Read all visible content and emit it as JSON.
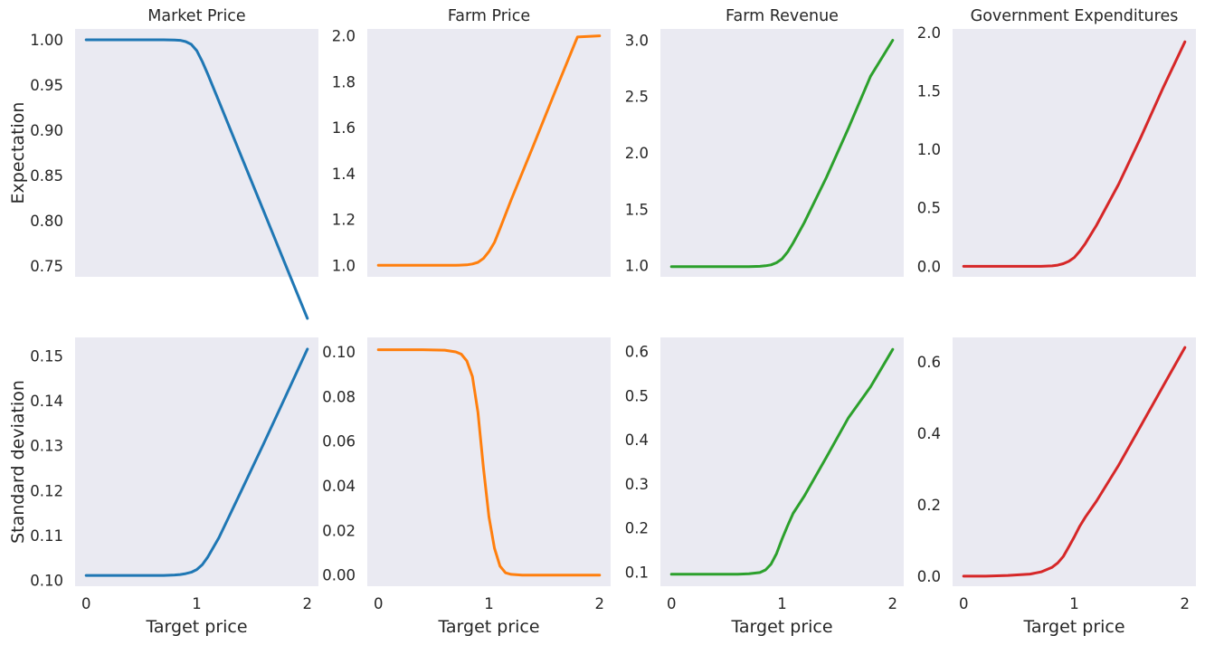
{
  "chart_data": [
    {
      "type": "line",
      "title": "Market Price",
      "xlabel": "",
      "ylabel": "Expectation",
      "color": "#1f77b4",
      "xlim": [
        -0.1,
        2.1
      ],
      "ylim": [
        0.738,
        1.012
      ],
      "xticks": [
        0,
        1,
        2
      ],
      "yticks": [
        "0.75",
        "0.80",
        "0.85",
        "0.90",
        "0.95",
        "1.00"
      ],
      "x": [
        0,
        0.2,
        0.4,
        0.6,
        0.7,
        0.8,
        0.85,
        0.9,
        0.95,
        1.0,
        1.05,
        1.1,
        1.2,
        1.4,
        1.6,
        1.8,
        2.0
      ],
      "y": [
        1.0,
        1.0,
        1.0,
        1.0,
        1.0,
        0.9998,
        0.9994,
        0.998,
        0.995,
        0.988,
        0.976,
        0.962,
        0.932,
        0.872,
        0.812,
        0.752,
        0.692
      ]
    },
    {
      "type": "line",
      "title": "Farm Price",
      "xlabel": "",
      "ylabel": "",
      "color": "#ff7f0e",
      "xlim": [
        -0.1,
        2.1
      ],
      "ylim": [
        0.95,
        2.03
      ],
      "xticks": [
        0,
        1,
        2
      ],
      "yticks": [
        "1.0",
        "1.2",
        "1.4",
        "1.6",
        "1.8",
        "2.0"
      ],
      "x": [
        0,
        0.2,
        0.4,
        0.6,
        0.7,
        0.8,
        0.85,
        0.9,
        0.95,
        1.0,
        1.05,
        1.1,
        1.2,
        1.4,
        1.6,
        1.8,
        2.0
      ],
      "y": [
        1.0,
        1.0,
        1.0,
        1.0,
        1.0,
        1.002,
        1.006,
        1.013,
        1.03,
        1.06,
        1.1,
        1.16,
        1.285,
        1.52,
        1.76,
        1.995,
        2.0
      ]
    },
    {
      "type": "line",
      "title": "Farm Revenue",
      "xlabel": "",
      "ylabel": "",
      "color": "#2ca02c",
      "xlim": [
        -0.1,
        2.1
      ],
      "ylim": [
        0.9,
        3.1
      ],
      "xticks": [
        0,
        1,
        2
      ],
      "yticks": [
        "1.0",
        "1.5",
        "2.0",
        "2.5",
        "3.0"
      ],
      "x": [
        0,
        0.2,
        0.4,
        0.6,
        0.7,
        0.8,
        0.85,
        0.9,
        0.95,
        1.0,
        1.05,
        1.1,
        1.2,
        1.4,
        1.6,
        1.8,
        2.0
      ],
      "y": [
        0.99,
        0.99,
        0.99,
        0.99,
        0.99,
        0.993,
        0.998,
        1.006,
        1.025,
        1.06,
        1.12,
        1.2,
        1.38,
        1.78,
        2.22,
        2.68,
        3.0
      ]
    },
    {
      "type": "line",
      "title": "Government Expenditures",
      "xlabel": "",
      "ylabel": "",
      "color": "#d62728",
      "xlim": [
        -0.1,
        2.1
      ],
      "ylim": [
        -0.09,
        2.03
      ],
      "xticks": [
        0,
        1,
        2
      ],
      "yticks": [
        "0.0",
        "0.5",
        "1.0",
        "1.5",
        "2.0"
      ],
      "x": [
        0,
        0.2,
        0.4,
        0.6,
        0.7,
        0.8,
        0.85,
        0.9,
        0.95,
        1.0,
        1.05,
        1.1,
        1.2,
        1.4,
        1.6,
        1.8,
        2.0
      ],
      "y": [
        0.0,
        0.0,
        0.0,
        0.0,
        0.0,
        0.004,
        0.01,
        0.022,
        0.042,
        0.075,
        0.13,
        0.195,
        0.35,
        0.7,
        1.1,
        1.52,
        1.92
      ]
    },
    {
      "type": "line",
      "title": "",
      "xlabel": "Target price",
      "ylabel": "Standard deviation",
      "color": "#1f77b4",
      "xlim": [
        -0.1,
        2.1
      ],
      "ylim": [
        0.0987,
        0.1541
      ],
      "xticks": [
        0,
        1,
        2
      ],
      "yticks": [
        "0.10",
        "0.11",
        "0.12",
        "0.13",
        "0.14",
        "0.15"
      ],
      "x": [
        0,
        0.2,
        0.4,
        0.6,
        0.7,
        0.8,
        0.85,
        0.9,
        0.95,
        1.0,
        1.05,
        1.1,
        1.2,
        1.4,
        1.6,
        1.8,
        2.0
      ],
      "y": [
        0.1011,
        0.1011,
        0.1011,
        0.1011,
        0.1011,
        0.1012,
        0.1013,
        0.1015,
        0.1018,
        0.1024,
        0.1035,
        0.1052,
        0.1095,
        0.1198,
        0.1302,
        0.1408,
        0.1515
      ]
    },
    {
      "type": "line",
      "title": "",
      "xlabel": "Target price",
      "ylabel": "",
      "color": "#ff7f0e",
      "xlim": [
        -0.1,
        2.1
      ],
      "ylim": [
        -0.005,
        0.1065
      ],
      "xticks": [
        0,
        1,
        2
      ],
      "yticks": [
        "0.00",
        "0.02",
        "0.04",
        "0.06",
        "0.08",
        "0.10"
      ],
      "x": [
        0,
        0.2,
        0.4,
        0.6,
        0.7,
        0.75,
        0.8,
        0.85,
        0.9,
        0.95,
        1.0,
        1.05,
        1.1,
        1.15,
        1.2,
        1.3,
        1.5,
        2.0
      ],
      "y": [
        0.101,
        0.101,
        0.101,
        0.1008,
        0.1,
        0.099,
        0.096,
        0.089,
        0.073,
        0.048,
        0.026,
        0.012,
        0.004,
        0.001,
        0.0003,
        0.0,
        0.0,
        0.0
      ]
    },
    {
      "type": "line",
      "title": "",
      "xlabel": "Target price",
      "ylabel": "",
      "color": "#2ca02c",
      "xlim": [
        -0.1,
        2.1
      ],
      "ylim": [
        0.068,
        0.632
      ],
      "xticks": [
        0,
        1,
        2
      ],
      "yticks": [
        "0.1",
        "0.2",
        "0.3",
        "0.4",
        "0.5",
        "0.6"
      ],
      "x": [
        0,
        0.2,
        0.4,
        0.6,
        0.7,
        0.8,
        0.85,
        0.9,
        0.95,
        1.0,
        1.05,
        1.1,
        1.2,
        1.4,
        1.6,
        1.8,
        2.0
      ],
      "y": [
        0.095,
        0.095,
        0.095,
        0.095,
        0.096,
        0.099,
        0.105,
        0.118,
        0.142,
        0.175,
        0.205,
        0.233,
        0.272,
        0.36,
        0.45,
        0.52,
        0.605
      ]
    },
    {
      "type": "line",
      "title": "",
      "xlabel": "Target price",
      "ylabel": "",
      "color": "#d62728",
      "xlim": [
        -0.1,
        2.1
      ],
      "ylim": [
        -0.028,
        0.668
      ],
      "xticks": [
        0,
        1,
        2
      ],
      "yticks": [
        "0.0",
        "0.2",
        "0.4",
        "0.6"
      ],
      "x": [
        0,
        0.2,
        0.4,
        0.6,
        0.7,
        0.8,
        0.85,
        0.9,
        0.95,
        1.0,
        1.05,
        1.1,
        1.2,
        1.4,
        1.6,
        1.8,
        2.0
      ],
      "y": [
        0.0,
        0.0,
        0.002,
        0.006,
        0.012,
        0.025,
        0.037,
        0.055,
        0.082,
        0.11,
        0.14,
        0.165,
        0.21,
        0.31,
        0.42,
        0.53,
        0.64
      ]
    }
  ]
}
